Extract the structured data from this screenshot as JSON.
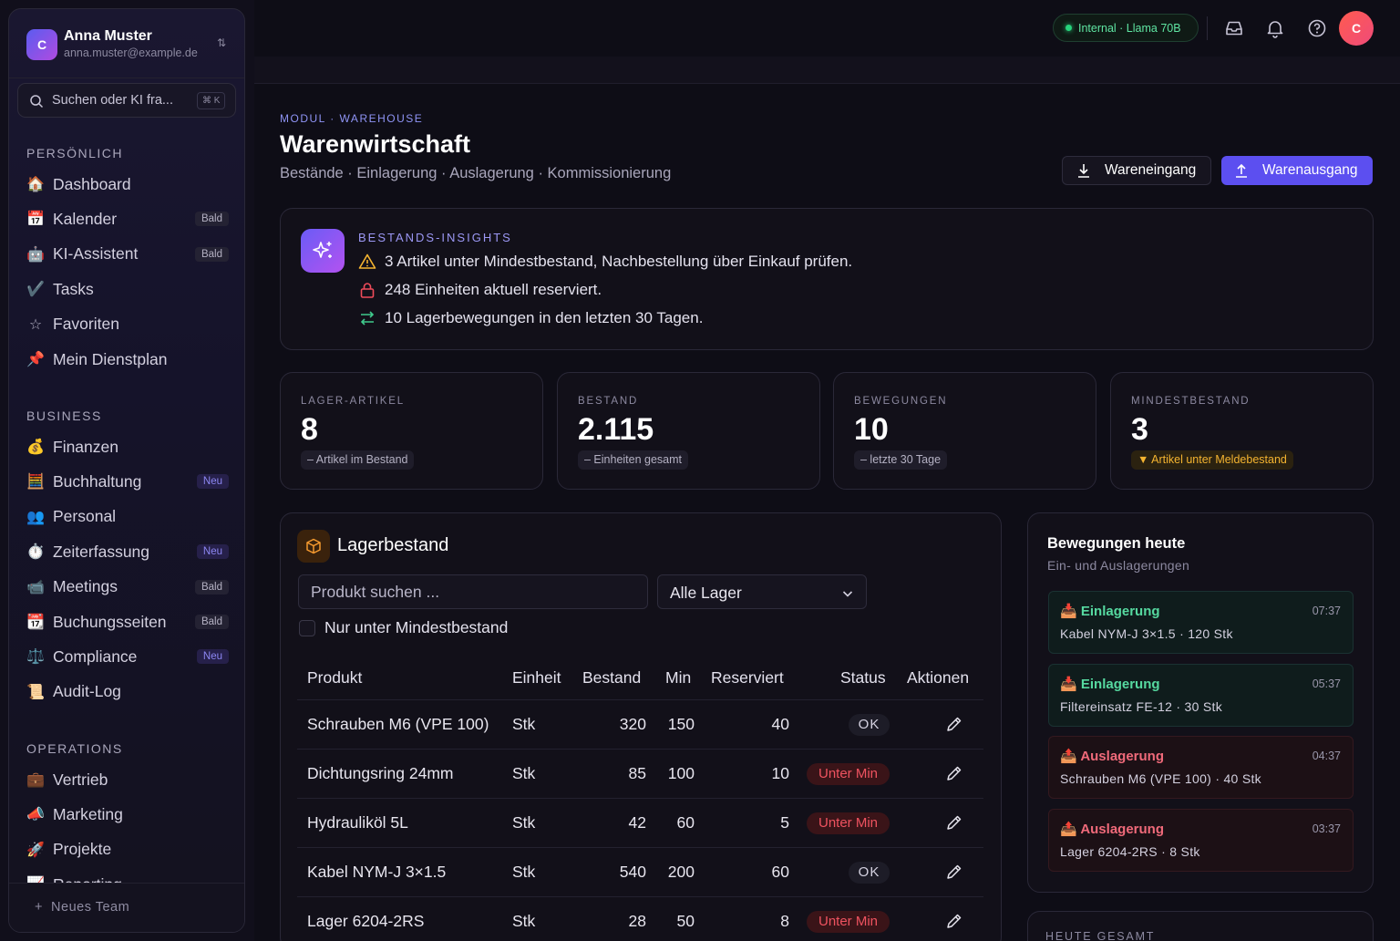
{
  "user": {
    "initial": "C",
    "name": "Anna Muster",
    "email": "anna.muster@example.de",
    "switch_icon": "⇅"
  },
  "search": {
    "placeholder": "Suchen oder KI fra...",
    "shortcut": "⌘ K"
  },
  "sections": {
    "personal": "PERSÖNLICH",
    "business": "BUSINESS",
    "operations": "OPERATIONS"
  },
  "nav_personal": [
    {
      "icon": "🏠",
      "label": "Dashboard",
      "badge": ""
    },
    {
      "icon": "📅",
      "label": "Kalender",
      "badge": "Bald"
    },
    {
      "icon": "🤖",
      "label": "KI-Assistent",
      "badge": "Bald"
    },
    {
      "icon": "✔️",
      "label": "Tasks",
      "badge": ""
    },
    {
      "icon": "☆",
      "label": "Favoriten",
      "badge": ""
    },
    {
      "icon": "📌",
      "label": "Mein Dienstplan",
      "badge": ""
    }
  ],
  "nav_business": [
    {
      "icon": "💰",
      "label": "Finanzen",
      "badge": ""
    },
    {
      "icon": "🧮",
      "label": "Buchhaltung",
      "badge": "Neu"
    },
    {
      "icon": "👥",
      "label": "Personal",
      "badge": ""
    },
    {
      "icon": "⏱️",
      "label": "Zeiterfassung",
      "badge": "Neu"
    },
    {
      "icon": "📹",
      "label": "Meetings",
      "badge": "Bald"
    },
    {
      "icon": "📆",
      "label": "Buchungsseiten",
      "badge": "Bald"
    },
    {
      "icon": "⚖️",
      "label": "Compliance",
      "badge": "Neu"
    },
    {
      "icon": "📜",
      "label": "Audit-Log",
      "badge": ""
    }
  ],
  "nav_operations": [
    {
      "icon": "💼",
      "label": "Vertrieb",
      "badge": ""
    },
    {
      "icon": "📣",
      "label": "Marketing",
      "badge": ""
    },
    {
      "icon": "🚀",
      "label": "Projekte",
      "badge": ""
    },
    {
      "icon": "📈",
      "label": "Reporting",
      "badge": ""
    }
  ],
  "new_team": "Neues Team",
  "topbar": {
    "model_pill": "Internal · Llama 70B",
    "avatar_initial": "C"
  },
  "header": {
    "breadcrumb": "MODUL · WAREHOUSE",
    "title": "Warenwirtschaft",
    "subtitle": "Bestände · Einlagerung · Auslagerung · Kommissionierung",
    "btn_in": "Wareneingang",
    "btn_out": "Warenausgang"
  },
  "insights": {
    "title": "BESTANDS-INSIGHTS",
    "lines": [
      "3 Artikel unter Mindestbestand, Nachbestellung über Einkauf prüfen.",
      "248 Einheiten aktuell reserviert.",
      "10 Lagerbewegungen in den letzten 30 Tagen."
    ]
  },
  "stats": [
    {
      "label": "LAGER-ARTIKEL",
      "value": "8",
      "badge": "– Artikel im Bestand"
    },
    {
      "label": "BESTAND",
      "value": "2.115",
      "badge": "– Einheiten gesamt"
    },
    {
      "label": "BEWEGUNGEN",
      "value": "10",
      "badge": "– letzte 30 Tage"
    },
    {
      "label": "MINDESTBESTAND",
      "value": "3",
      "badge": "▼ Artikel unter Meldebestand"
    }
  ],
  "lager": {
    "title": "Lagerbestand",
    "search_placeholder": "Produkt suchen ...",
    "select_value": "Alle Lager",
    "checkbox_label": "Nur unter Mindestbestand",
    "columns": [
      "Produkt",
      "Einheit",
      "Bestand",
      "Min",
      "Reserviert",
      "Status",
      "Aktionen"
    ],
    "rows": [
      {
        "produkt": "Schrauben M6 (VPE 100)",
        "einheit": "Stk",
        "bestand": "320",
        "min": "150",
        "reserviert": "40",
        "status": "OK"
      },
      {
        "produkt": "Dichtungsring 24mm",
        "einheit": "Stk",
        "bestand": "85",
        "min": "100",
        "reserviert": "10",
        "status": "Unter Min"
      },
      {
        "produkt": "Hydrauliköl 5L",
        "einheit": "Stk",
        "bestand": "42",
        "min": "60",
        "reserviert": "5",
        "status": "Unter Min"
      },
      {
        "produkt": "Kabel NYM-J 3×1.5",
        "einheit": "Stk",
        "bestand": "540",
        "min": "200",
        "reserviert": "60",
        "status": "OK"
      },
      {
        "produkt": "Lager 6204-2RS",
        "einheit": "Stk",
        "bestand": "28",
        "min": "50",
        "reserviert": "8",
        "status": "Unter Min"
      }
    ]
  },
  "bewegungen": {
    "title": "Bewegungen heute",
    "subtitle": "Ein- und Auslagerungen",
    "items": [
      {
        "icon": "📥",
        "type": "Einlagerung",
        "time": "07:37",
        "detail": "Kabel NYM-J 3×1.5 · 120 Stk"
      },
      {
        "icon": "📥",
        "type": "Einlagerung",
        "time": "05:37",
        "detail": "Filtereinsatz FE-12 · 30 Stk"
      },
      {
        "icon": "📤",
        "type": "Auslagerung",
        "time": "04:37",
        "detail": "Schrauben M6 (VPE 100) · 40 Stk"
      },
      {
        "icon": "📤",
        "type": "Auslagerung",
        "time": "03:37",
        "detail": "Lager 6204-2RS · 8 Stk"
      }
    ]
  },
  "heute_gesamt": "HEUTE GESAMT"
}
